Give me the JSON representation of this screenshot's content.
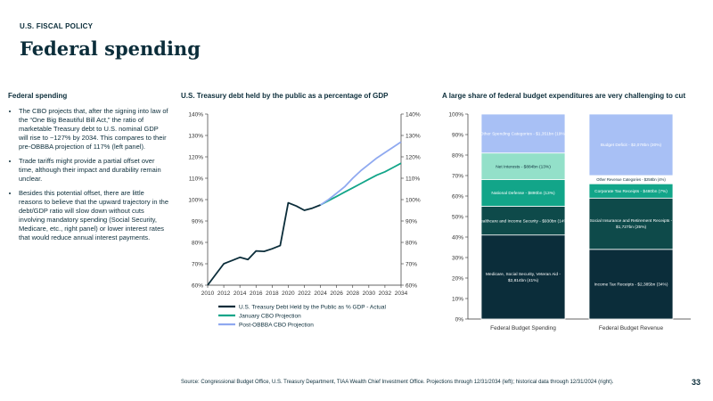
{
  "header": {
    "kicker": "U.S. FISCAL POLICY",
    "title": "Federal spending"
  },
  "left_panel": {
    "heading": "Federal spending",
    "bullets": [
      "The CBO projects that, after the signing into law of the “One Big Beautiful Bill Act,” the ratio of marketable Treasury debt to U.S. nominal GDP will rise to ~127% by 2034. This compares to their pre-OBBBA projection of 117% (left panel).",
      "Trade tariffs might provide a partial offset over time, although their impact and durability remain unclear.",
      "Besides this potential offset, there are little reasons to believe that the upward trajectory in the debt/GDP ratio will slow down without cuts involving mandatory spending (Social Security, Medicare, etc., right panel) or lower interest rates that would reduce annual interest payments."
    ]
  },
  "footer": {
    "source": "Source: Congressional Budget Office, U.S. Treasury Department, TIAA Wealth Chief Investment Office. Projections through 12/31/2034 (left); historical data through 12/31/2024 (right).",
    "page": "33"
  },
  "chart_data": [
    {
      "type": "line",
      "title": "U.S. Treasury debt held by the public as a percentage of GDP",
      "ylim": [
        60,
        140
      ],
      "y_ticks": [
        "60%",
        "70%",
        "80%",
        "90%",
        "100%",
        "110%",
        "120%",
        "130%",
        "140%"
      ],
      "x_ticks": [
        "2010",
        "2012",
        "2014",
        "2016",
        "2018",
        "2020",
        "2022",
        "2024",
        "2026",
        "2028",
        "2030",
        "2032",
        "2034"
      ],
      "legend_position": "bottom",
      "series": [
        {
          "name": "U.S. Treasury Debt Held by the Public as % GDP - Actual",
          "color": "#0b2d3a",
          "points": [
            [
              2010,
              60
            ],
            [
              2011,
              65
            ],
            [
              2012,
              70
            ],
            [
              2013,
              71.5
            ],
            [
              2014,
              73
            ],
            [
              2015,
              72
            ],
            [
              2016,
              76
            ],
            [
              2017,
              75.8
            ],
            [
              2018,
              77
            ],
            [
              2019,
              78.5
            ],
            [
              2020,
              98.5
            ],
            [
              2021,
              97
            ],
            [
              2022,
              95
            ],
            [
              2023,
              96
            ],
            [
              2024,
              97.5
            ]
          ]
        },
        {
          "name": "January CBO Projection",
          "color": "#12a589",
          "points": [
            [
              2024,
              97.5
            ],
            [
              2025,
              99.5
            ],
            [
              2026,
              101.5
            ],
            [
              2027,
              103.5
            ],
            [
              2028,
              105.5
            ],
            [
              2029,
              107.5
            ],
            [
              2030,
              109.5
            ],
            [
              2031,
              111.5
            ],
            [
              2032,
              113
            ],
            [
              2033,
              115
            ],
            [
              2034,
              117
            ]
          ]
        },
        {
          "name": "Post-OBBBA CBO Projection",
          "color": "#8fa9f0",
          "points": [
            [
              2024,
              97.5
            ],
            [
              2025,
              100
            ],
            [
              2026,
              103
            ],
            [
              2027,
              106
            ],
            [
              2028,
              110
            ],
            [
              2029,
              113.5
            ],
            [
              2030,
              116.5
            ],
            [
              2031,
              119.5
            ],
            [
              2032,
              122
            ],
            [
              2033,
              124.5
            ],
            [
              2034,
              127
            ]
          ]
        }
      ]
    },
    {
      "type": "bar",
      "stacked": true,
      "title": "A large share of federal budget expenditures are very challenging to cut",
      "ylim": [
        0,
        100
      ],
      "y_ticks": [
        "0%",
        "10%",
        "20%",
        "30%",
        "40%",
        "50%",
        "60%",
        "70%",
        "80%",
        "90%",
        "100%"
      ],
      "categories": [
        "Federal Budget Spending",
        "Federal Budget Revenue"
      ],
      "stacks": [
        {
          "category": "Federal Budget Spending",
          "segments": [
            {
              "label": "Medicare, Social Security, Veteran Aid - $2,814bn (41%)",
              "value": 41,
              "color": "#0b2d3a",
              "text_color": "#ffffff"
            },
            {
              "label": "Healthcare and Income Security - $930bn (14%)",
              "value": 14,
              "color": "#0e4a4a",
              "text_color": "#ffffff"
            },
            {
              "label": "National Defense - $890bn (13%)",
              "value": 13,
              "color": "#12a589",
              "text_color": "#ffffff"
            },
            {
              "label": "Net Interests - $884bn (13%)",
              "value": 13,
              "color": "#93e0c9",
              "text_color": "#0b2d3a"
            },
            {
              "label": "Other Spending Categories - $1,351bn (19%)",
              "value": 19,
              "color": "#a8c0f5",
              "text_color": "#ffffff"
            }
          ]
        },
        {
          "category": "Federal Budget Revenue",
          "segments": [
            {
              "label": "Income Tax Receipts - $2,385bn (34%)",
              "value": 34,
              "color": "#0b2d3a",
              "text_color": "#ffffff"
            },
            {
              "label": "Social Insurance and Retirement Receipts - $1,727bn (25%)",
              "value": 25,
              "color": "#0e4a4a",
              "text_color": "#ffffff"
            },
            {
              "label": "Corporate Tax Receipts - $480bn (7%)",
              "value": 7,
              "color": "#12a589",
              "text_color": "#ffffff"
            },
            {
              "label": "Other Revenue Categories - $258bn (4%)",
              "value": 4,
              "color": "#ffffff",
              "text_color": "#0b2d3a"
            },
            {
              "label": "Budget Deficit - $2,078bn (30%)",
              "value": 30,
              "color": "#a8c0f5",
              "text_color": "#ffffff"
            }
          ]
        }
      ]
    }
  ]
}
